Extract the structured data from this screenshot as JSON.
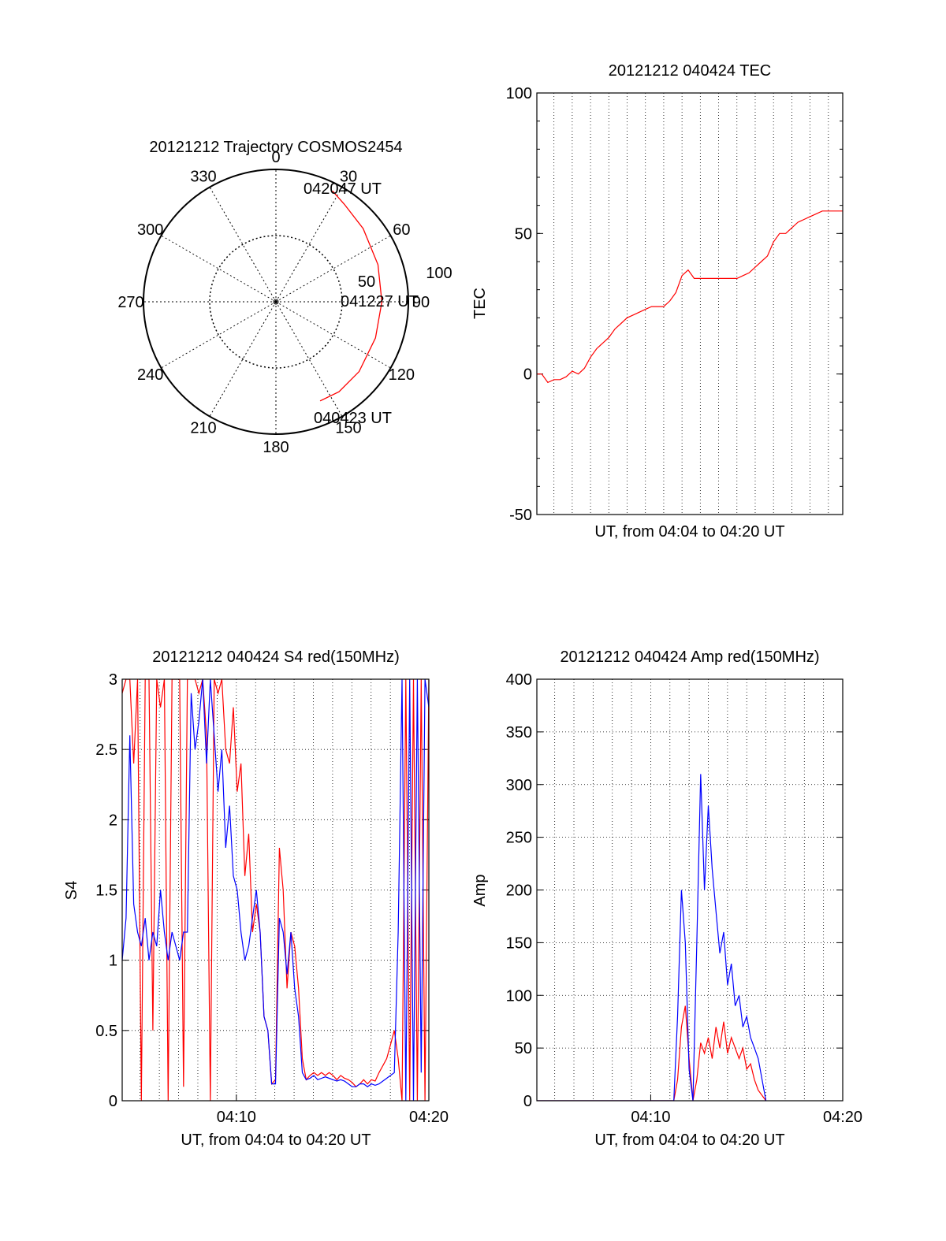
{
  "colors": {
    "red": "#ff0000",
    "blue": "#0000ff",
    "axis": "#000000",
    "grid": "#000000"
  },
  "chart_data": [
    {
      "id": "trajectory",
      "type": "polar",
      "title": "20121212 Trajectory COSMOS2454",
      "angle_labels": [
        "0",
        "30",
        "60",
        "90",
        "120",
        "150",
        "180",
        "210",
        "240",
        "270",
        "300",
        "330"
      ],
      "radial_labels": [
        "50",
        "100"
      ],
      "grid": "dotted",
      "start_label": "040423 UT",
      "mid_label": "041227 UT",
      "end_label": "042047 UT",
      "trajectory": {
        "color": "#ff0000",
        "points": [
          {
            "azimuth": 156,
            "zenith": 82
          },
          {
            "azimuth": 145,
            "zenith": 83
          },
          {
            "azimuth": 130,
            "zenith": 82
          },
          {
            "azimuth": 110,
            "zenith": 80
          },
          {
            "azimuth": 90,
            "zenith": 80
          },
          {
            "azimuth": 70,
            "zenith": 82
          },
          {
            "azimuth": 50,
            "zenith": 86
          },
          {
            "azimuth": 35,
            "zenith": 90
          },
          {
            "azimuth": 27,
            "zenith": 94
          }
        ]
      }
    },
    {
      "id": "tec",
      "type": "line",
      "title": "20121212 040424 TEC",
      "xlabel": "UT, from 04:04 to 04:20 UT",
      "ylabel": "TEC",
      "xlim": [
        244,
        1247
      ],
      "ylim": [
        -50,
        100
      ],
      "yticks": [
        "-50",
        "0",
        "50",
        "100"
      ],
      "grid": "vertical dotted",
      "series": [
        {
          "color": "#ff0000",
          "x": [
            244,
            260,
            280,
            300,
            320,
            340,
            360,
            380,
            400,
            420,
            440,
            460,
            480,
            500,
            520,
            540,
            560,
            580,
            600,
            620,
            640,
            660,
            680,
            700,
            720,
            740,
            760,
            780,
            800,
            820,
            840,
            860,
            880,
            900,
            920,
            940,
            960,
            980,
            1000,
            1020,
            1040,
            1060,
            1080,
            1100,
            1120,
            1140,
            1160,
            1180,
            1200,
            1220,
            1247
          ],
          "y": [
            0,
            0,
            -3,
            -2,
            -2,
            -1,
            1,
            0,
            2,
            6,
            9,
            11,
            13,
            16,
            18,
            20,
            21,
            22,
            23,
            24,
            24,
            24,
            26,
            29,
            35,
            37,
            34,
            34,
            34,
            34,
            34,
            34,
            34,
            34,
            35,
            36,
            38,
            40,
            42,
            47,
            50,
            50,
            52,
            54,
            55,
            56,
            57,
            58,
            58,
            58,
            58
          ]
        }
      ]
    },
    {
      "id": "s4",
      "type": "line",
      "title": "20121212 040424 S4 red(150MHz)",
      "xlabel": "UT, from 04:04 to 04:20 UT",
      "ylabel": "S4",
      "xtick_labels": [
        "04:10",
        "04:20"
      ],
      "yticks": [
        "0",
        "0.5",
        "1",
        "1.5",
        "2",
        "2.5",
        "3"
      ],
      "ylim": [
        0,
        3
      ],
      "grid": "dotted",
      "series": [
        {
          "color": "#ff0000",
          "x": [
            4.0,
            4.05,
            4.1,
            4.15,
            4.2,
            4.25,
            4.3,
            4.35,
            4.4,
            4.45,
            4.5,
            4.55,
            4.6,
            4.65,
            4.7,
            4.75,
            4.8,
            4.85,
            4.9,
            4.95,
            5.0,
            5.05,
            5.1,
            5.15,
            5.2,
            5.25,
            5.3,
            5.35,
            5.4,
            5.45,
            5.5,
            5.55,
            5.6,
            5.65,
            5.7,
            5.75,
            5.8,
            5.85,
            5.9,
            5.95,
            6.0,
            6.05,
            6.1,
            6.15,
            6.2,
            6.25,
            6.3,
            6.35,
            6.4,
            6.45,
            6.5,
            6.55,
            6.6,
            6.65,
            6.7,
            6.75,
            6.8,
            6.85,
            6.9,
            6.95,
            7.0,
            7.05,
            7.1,
            7.15,
            7.2,
            7.25,
            7.3,
            7.35,
            7.4,
            7.45,
            7.5,
            7.55,
            7.6,
            7.65,
            7.7,
            7.75,
            7.8,
            7.85,
            7.9,
            7.95,
            8.0
          ],
          "y": [
            2.9,
            3.0,
            3.0,
            2.4,
            3.0,
            0.0,
            3.0,
            3.0,
            0.5,
            3.0,
            2.8,
            3.0,
            0.0,
            3.0,
            3.0,
            3.0,
            0.1,
            3.0,
            3.0,
            3.0,
            2.9,
            3.0,
            2.6,
            0.0,
            3.0,
            2.9,
            3.0,
            2.5,
            2.4,
            2.8,
            2.2,
            2.4,
            1.6,
            1.9,
            1.2,
            1.4,
            1.2,
            0.6,
            0.5,
            0.12,
            0.15,
            1.8,
            1.5,
            0.8,
            1.2,
            1.1,
            0.8,
            0.3,
            0.15,
            0.18,
            0.2,
            0.18,
            0.2,
            0.18,
            0.2,
            0.18,
            0.15,
            0.18,
            0.16,
            0.15,
            0.13,
            0.1,
            0.12,
            0.15,
            0.12,
            0.15,
            0.14,
            0.2,
            0.25,
            0.3,
            0.4,
            0.5,
            0.3,
            0.0,
            3.0,
            0.0,
            3.0,
            0.0,
            3.0,
            0.0,
            3.0
          ]
        },
        {
          "color": "#0000ff",
          "x": [
            4.0,
            4.05,
            4.1,
            4.15,
            4.2,
            4.25,
            4.3,
            4.35,
            4.4,
            4.45,
            4.5,
            4.55,
            4.6,
            4.65,
            4.7,
            4.75,
            4.8,
            4.85,
            4.9,
            4.95,
            5.0,
            5.05,
            5.1,
            5.15,
            5.2,
            5.25,
            5.3,
            5.35,
            5.4,
            5.45,
            5.5,
            5.55,
            5.6,
            5.65,
            5.7,
            5.75,
            5.8,
            5.85,
            5.9,
            5.95,
            6.0,
            6.05,
            6.1,
            6.15,
            6.2,
            6.25,
            6.3,
            6.35,
            6.4,
            6.45,
            6.5,
            6.55,
            6.6,
            6.65,
            6.7,
            6.75,
            6.8,
            6.85,
            6.9,
            6.95,
            7.0,
            7.05,
            7.1,
            7.15,
            7.2,
            7.25,
            7.3,
            7.35,
            7.4,
            7.45,
            7.5,
            7.55,
            7.6,
            7.65,
            7.7,
            7.75,
            7.8,
            7.85,
            7.9,
            7.95,
            8.0
          ],
          "y": [
            1.0,
            1.3,
            2.6,
            1.4,
            1.2,
            1.1,
            1.3,
            1.0,
            1.2,
            1.1,
            1.5,
            1.2,
            1.0,
            1.2,
            1.1,
            1.0,
            1.2,
            1.2,
            2.9,
            2.5,
            2.7,
            3.0,
            2.4,
            3.0,
            2.6,
            2.2,
            2.5,
            1.8,
            2.1,
            1.6,
            1.5,
            1.2,
            1.0,
            1.1,
            1.3,
            1.5,
            1.2,
            0.6,
            0.5,
            0.12,
            0.12,
            1.3,
            1.2,
            0.9,
            1.2,
            0.8,
            0.6,
            0.2,
            0.15,
            0.16,
            0.18,
            0.15,
            0.16,
            0.17,
            0.16,
            0.15,
            0.14,
            0.15,
            0.14,
            0.12,
            0.1,
            0.1,
            0.12,
            0.12,
            0.1,
            0.12,
            0.11,
            0.12,
            0.14,
            0.16,
            0.18,
            0.2,
            1.2,
            3.0,
            0.0,
            3.0,
            0.0,
            3.0,
            0.2,
            3.0,
            2.8
          ]
        }
      ]
    },
    {
      "id": "amp",
      "type": "line",
      "title": "20121212 040424 Amp red(150MHz)",
      "xlabel": "UT, from 04:04 to 04:20 UT",
      "ylabel": "Amp",
      "xtick_labels": [
        "04:10",
        "04:20"
      ],
      "yticks": [
        "0",
        "50",
        "100",
        "150",
        "200",
        "250",
        "300",
        "350",
        "400"
      ],
      "ylim": [
        0,
        400
      ],
      "grid": "dotted",
      "series": [
        {
          "color": "#ff0000",
          "x": [
            4.0,
            4.5,
            5.0,
            5.5,
            6.0,
            6.4,
            6.6,
            6.8,
            7.0,
            7.2,
            7.4,
            7.5,
            7.6,
            7.8,
            8.0,
            8.2,
            8.4,
            8.6,
            8.8,
            9.0,
            9.2,
            9.4,
            9.6,
            9.8,
            10.0,
            10.2,
            10.4,
            10.6,
            10.8,
            11.0,
            11.2,
            11.4,
            11.6,
            11.8,
            12.0,
            12.2,
            12.4,
            12.6,
            12.8,
            13.0,
            13.2,
            13.4,
            13.6,
            13.8,
            14.0,
            14.2,
            14.4,
            14.6,
            14.8,
            15.0,
            15.2,
            15.4,
            15.6,
            16.0
          ],
          "y": [
            0,
            0,
            0,
            0,
            0,
            0,
            0,
            0,
            0,
            0,
            0,
            0,
            0,
            0,
            0,
            0,
            0,
            0,
            0,
            0,
            0,
            0,
            0,
            0,
            0,
            0,
            0,
            0,
            0,
            0,
            0,
            20,
            70,
            90,
            40,
            0,
            20,
            55,
            45,
            60,
            40,
            70,
            50,
            75,
            45,
            60,
            50,
            40,
            50,
            30,
            35,
            20,
            10,
            0
          ]
        },
        {
          "color": "#0000ff",
          "x": [
            4.0,
            4.5,
            5.0,
            5.5,
            6.0,
            6.4,
            6.6,
            6.8,
            7.0,
            7.2,
            7.4,
            7.5,
            7.6,
            7.8,
            8.0,
            8.2,
            8.4,
            8.6,
            8.8,
            9.0,
            9.2,
            9.4,
            9.6,
            9.8,
            10.0,
            10.2,
            10.4,
            10.6,
            10.8,
            11.0,
            11.2,
            11.4,
            11.6,
            11.8,
            12.0,
            12.2,
            12.4,
            12.6,
            12.8,
            13.0,
            13.2,
            13.4,
            13.6,
            13.8,
            14.0,
            14.2,
            14.4,
            14.6,
            14.8,
            15.0,
            15.2,
            15.4,
            15.6,
            16.0
          ],
          "y": [
            0,
            0,
            0,
            0,
            0,
            0,
            0,
            0,
            0,
            0,
            0,
            0,
            0,
            0,
            0,
            0,
            0,
            0,
            0,
            0,
            0,
            0,
            0,
            0,
            0,
            0,
            0,
            0,
            0,
            0,
            0,
            80,
            200,
            150,
            30,
            0,
            150,
            310,
            200,
            280,
            220,
            180,
            140,
            160,
            110,
            130,
            90,
            100,
            70,
            80,
            60,
            50,
            40,
            0
          ]
        }
      ]
    }
  ]
}
